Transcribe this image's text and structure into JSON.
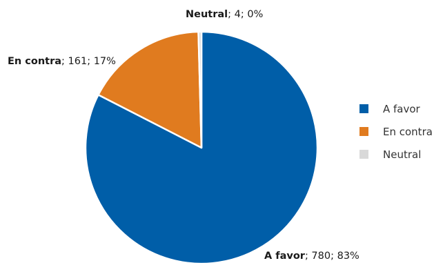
{
  "chart_data": {
    "type": "pie",
    "title": "",
    "slices": [
      {
        "label": "A favor",
        "value": 780,
        "percent": "83%",
        "color": "#005EA8"
      },
      {
        "label": "En contra",
        "value": 161,
        "percent": "17%",
        "color": "#E07B1F"
      },
      {
        "label": "Neutral",
        "value": 4,
        "percent": "0%",
        "color": "#D9D9D9"
      }
    ],
    "legend": {
      "placement": "right",
      "items": [
        "A favor",
        "En contra",
        "Neutral"
      ]
    },
    "data_labels": [
      {
        "name": "Neutral",
        "rest": "; 4; 0%"
      },
      {
        "name": "En contra",
        "rest": "; 161; 17%"
      },
      {
        "name": "A favor",
        "rest": "; 780; 83%"
      }
    ]
  }
}
